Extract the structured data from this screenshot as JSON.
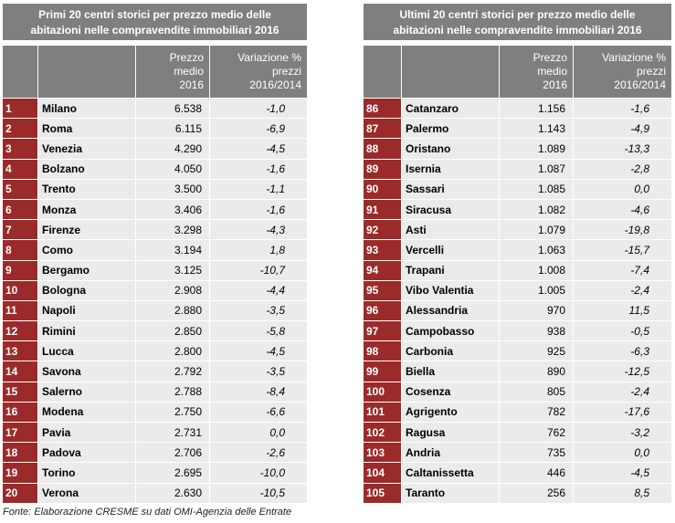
{
  "chart_data": [
    {
      "type": "table",
      "title": "Primi 20 centri storici per prezzo medio delle abitazioni nelle compravendite immobiliari 2016",
      "columns": [
        "",
        "",
        "Prezzo medio 2016",
        "Variazione % prezzi 2016/2014"
      ],
      "rows": [
        {
          "rank": "1",
          "city": "Milano",
          "price": "6.538",
          "var": "-1,0"
        },
        {
          "rank": "2",
          "city": "Roma",
          "price": "6.115",
          "var": "-6,9"
        },
        {
          "rank": "3",
          "city": "Venezia",
          "price": "4.290",
          "var": "-4,5"
        },
        {
          "rank": "4",
          "city": "Bolzano",
          "price": "4.050",
          "var": "-1,6"
        },
        {
          "rank": "5",
          "city": "Trento",
          "price": "3.500",
          "var": "-1,1"
        },
        {
          "rank": "6",
          "city": "Monza",
          "price": "3.406",
          "var": "-1,6"
        },
        {
          "rank": "7",
          "city": "Firenze",
          "price": "3.298",
          "var": "-4,3"
        },
        {
          "rank": "8",
          "city": "Como",
          "price": "3.194",
          "var": "1,8"
        },
        {
          "rank": "9",
          "city": "Bergamo",
          "price": "3.125",
          "var": "-10,7"
        },
        {
          "rank": "10",
          "city": "Bologna",
          "price": "2.908",
          "var": "-4,4"
        },
        {
          "rank": "11",
          "city": "Napoli",
          "price": "2.880",
          "var": "-3,5"
        },
        {
          "rank": "12",
          "city": "Rimini",
          "price": "2.850",
          "var": "-5,8"
        },
        {
          "rank": "13",
          "city": "Lucca",
          "price": "2.800",
          "var": "-4,5"
        },
        {
          "rank": "14",
          "city": "Savona",
          "price": "2.792",
          "var": "-3,5"
        },
        {
          "rank": "15",
          "city": "Salerno",
          "price": "2.788",
          "var": "-8,4"
        },
        {
          "rank": "16",
          "city": "Modena",
          "price": "2.750",
          "var": "-6,6"
        },
        {
          "rank": "17",
          "city": "Pavia",
          "price": "2.731",
          "var": "0,0"
        },
        {
          "rank": "18",
          "city": "Padova",
          "price": "2.706",
          "var": "-2,6"
        },
        {
          "rank": "19",
          "city": "Torino",
          "price": "2.695",
          "var": "-10,0"
        },
        {
          "rank": "20",
          "city": "Verona",
          "price": "2.630",
          "var": "-10,5"
        }
      ]
    },
    {
      "type": "table",
      "title": "Ultimi 20 centri storici per prezzo medio delle abitazioni nelle compravendite immobiliari 2016",
      "columns": [
        "",
        "",
        "Prezzo medio 2016",
        "Variazione % prezzi 2016/2014"
      ],
      "rows": [
        {
          "rank": "86",
          "city": "Catanzaro",
          "price": "1.156",
          "var": "-1,6"
        },
        {
          "rank": "87",
          "city": "Palermo",
          "price": "1.143",
          "var": "-4,9"
        },
        {
          "rank": "88",
          "city": "Oristano",
          "price": "1.089",
          "var": "-13,3"
        },
        {
          "rank": "89",
          "city": "Isernia",
          "price": "1.087",
          "var": "-2,8"
        },
        {
          "rank": "90",
          "city": "Sassari",
          "price": "1.085",
          "var": "0,0"
        },
        {
          "rank": "91",
          "city": "Siracusa",
          "price": "1.082",
          "var": "-4,6"
        },
        {
          "rank": "92",
          "city": "Asti",
          "price": "1.079",
          "var": "-19,8"
        },
        {
          "rank": "93",
          "city": "Vercelli",
          "price": "1.063",
          "var": "-15,7"
        },
        {
          "rank": "94",
          "city": "Trapani",
          "price": "1.008",
          "var": "-7,4"
        },
        {
          "rank": "95",
          "city": "Vibo Valentia",
          "price": "1.005",
          "var": "-2,4"
        },
        {
          "rank": "96",
          "city": "Alessandria",
          "price": "970",
          "var": "11,5"
        },
        {
          "rank": "97",
          "city": "Campobasso",
          "price": "938",
          "var": "-0,5"
        },
        {
          "rank": "98",
          "city": "Carbonia",
          "price": "925",
          "var": "-6,3"
        },
        {
          "rank": "99",
          "city": "Biella",
          "price": "890",
          "var": "-12,5"
        },
        {
          "rank": "100",
          "city": "Cosenza",
          "price": "805",
          "var": "-2,4"
        },
        {
          "rank": "101",
          "city": "Agrigento",
          "price": "782",
          "var": "-17,6"
        },
        {
          "rank": "102",
          "city": "Ragusa",
          "price": "762",
          "var": "-3,2"
        },
        {
          "rank": "103",
          "city": "Andria",
          "price": "735",
          "var": "0,0"
        },
        {
          "rank": "104",
          "city": "Caltanissetta",
          "price": "446",
          "var": "-4,5"
        },
        {
          "rank": "105",
          "city": "Taranto",
          "price": "256",
          "var": "8,5"
        }
      ]
    }
  ],
  "colors": {
    "header": "#7f7f7f",
    "rank": "#9b2a2a",
    "row": "#ebebeb"
  },
  "left": {
    "title_line1": "Primi 20 centri storici per prezzo medio delle",
    "title_line2": "abitazioni nelle compravendite immobiliari 2016",
    "col_price_1": "Prezzo",
    "col_price_2": "medio",
    "col_price_3": "2016",
    "col_var_1": "Variazione %",
    "col_var_2": "prezzi",
    "col_var_3": "2016/2014"
  },
  "right": {
    "title_line1": "Ultimi 20 centri storici per prezzo medio delle",
    "title_line2": "abitazioni nelle compravendite immobiliari 2016",
    "col_price_1": "Prezzo",
    "col_price_2": "medio",
    "col_price_3": "2016",
    "col_var_1": "Variazione %",
    "col_var_2": "prezzi",
    "col_var_3": "2016/2014"
  },
  "source": "Fonte: Elaborazione  CRESME su dati OMI-Agenzia delle Entrate"
}
